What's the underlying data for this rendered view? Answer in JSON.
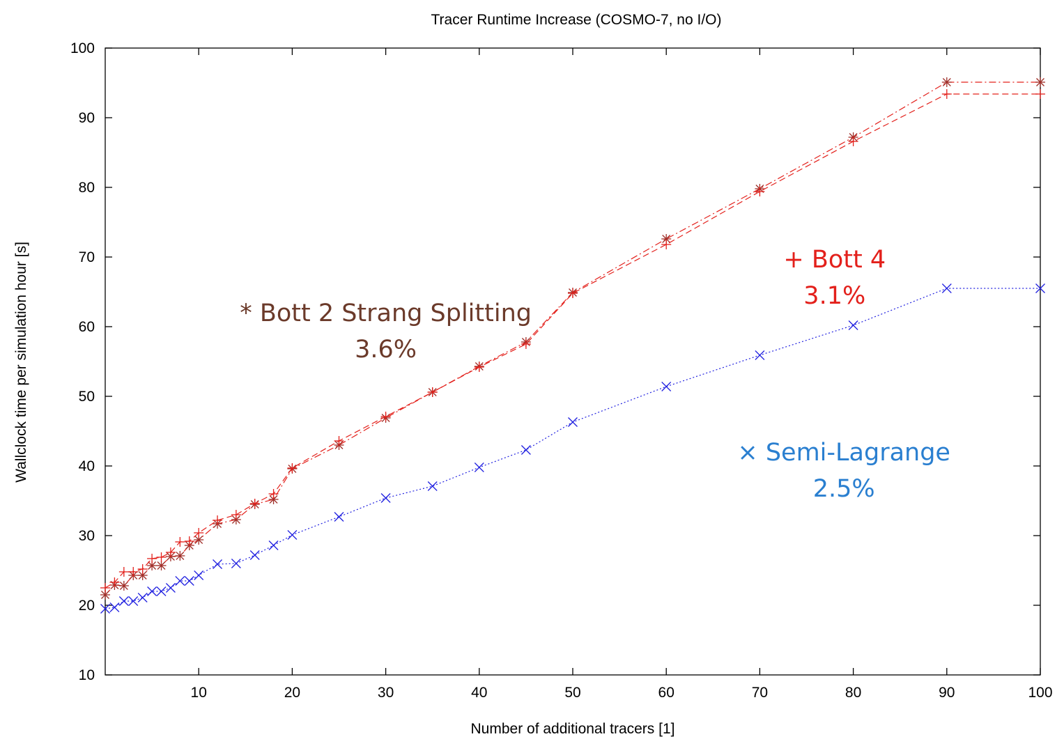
{
  "chart_data": {
    "type": "line",
    "title": "Tracer Runtime Increase (COSMO-7, no I/O)",
    "xlabel": "Number of additional tracers [1]",
    "ylabel": "Wallclock time per simulation hour [s]",
    "xlim": [
      0,
      100
    ],
    "ylim": [
      10,
      100
    ],
    "xticks": [
      10,
      20,
      30,
      40,
      50,
      60,
      70,
      80,
      90,
      100
    ],
    "yticks": [
      10,
      20,
      30,
      40,
      50,
      60,
      70,
      80,
      90,
      100
    ],
    "grid": false,
    "series": [
      {
        "key": "bott2",
        "marker": "*",
        "color": "#e3201b",
        "marker_color": "#a0302a",
        "dash": "10 4 2 4",
        "x": [
          0,
          1,
          2,
          3,
          4,
          5,
          6,
          7,
          8,
          9,
          10,
          12,
          14,
          16,
          18,
          20,
          25,
          30,
          35,
          40,
          45,
          50,
          60,
          70,
          80,
          90,
          100
        ],
        "y": [
          21.5,
          22.9,
          22.8,
          24.3,
          24.3,
          25.7,
          25.7,
          27.0,
          27.1,
          28.6,
          29.4,
          31.7,
          32.3,
          34.5,
          35.2,
          39.6,
          43.0,
          46.9,
          50.6,
          54.3,
          57.8,
          64.9,
          72.6,
          79.8,
          87.2,
          95.1,
          95.1
        ]
      },
      {
        "key": "bott4",
        "marker": "+",
        "color": "#e3201b",
        "marker_color": "#e3201b",
        "dash": "9 5",
        "x": [
          0,
          1,
          2,
          3,
          4,
          5,
          6,
          7,
          8,
          9,
          10,
          12,
          14,
          16,
          18,
          20,
          25,
          30,
          35,
          40,
          45,
          50,
          60,
          70,
          80,
          90,
          100
        ],
        "y": [
          22.5,
          23.3,
          24.8,
          24.8,
          25.2,
          26.7,
          26.9,
          27.6,
          29.1,
          29.2,
          30.4,
          32.2,
          33.0,
          34.6,
          36.0,
          39.7,
          43.6,
          47.1,
          50.6,
          54.2,
          57.5,
          64.8,
          71.8,
          79.4,
          86.6,
          93.4,
          93.4
        ]
      },
      {
        "key": "semilag",
        "marker": "x",
        "color": "#2121e0",
        "marker_color": "#2121e0",
        "dash": "2 3",
        "x": [
          0,
          1,
          2,
          3,
          4,
          5,
          6,
          7,
          8,
          9,
          10,
          12,
          14,
          16,
          18,
          20,
          25,
          30,
          35,
          40,
          45,
          50,
          60,
          70,
          80,
          90,
          100
        ],
        "y": [
          19.5,
          19.7,
          20.6,
          20.6,
          21.1,
          22.0,
          22.0,
          22.5,
          23.5,
          23.5,
          24.3,
          25.9,
          26.0,
          27.2,
          28.6,
          30.1,
          32.7,
          35.4,
          37.1,
          39.8,
          42.3,
          46.3,
          51.4,
          55.9,
          60.2,
          65.5,
          65.5
        ]
      }
    ],
    "annotations": [
      {
        "lines": [
          "* Bott 2 Strang Splitting",
          "3.6%"
        ],
        "color": "#6b3a2a",
        "x": 30,
        "y": 60.8
      },
      {
        "lines": [
          "+ Bott 4",
          "3.1%"
        ],
        "color": "#e3201b",
        "x": 78,
        "y": 68.5
      },
      {
        "lines": [
          "× Semi-Lagrange",
          "2.5%"
        ],
        "color": "#2a7fd0",
        "x": 79,
        "y": 40.8
      }
    ]
  }
}
